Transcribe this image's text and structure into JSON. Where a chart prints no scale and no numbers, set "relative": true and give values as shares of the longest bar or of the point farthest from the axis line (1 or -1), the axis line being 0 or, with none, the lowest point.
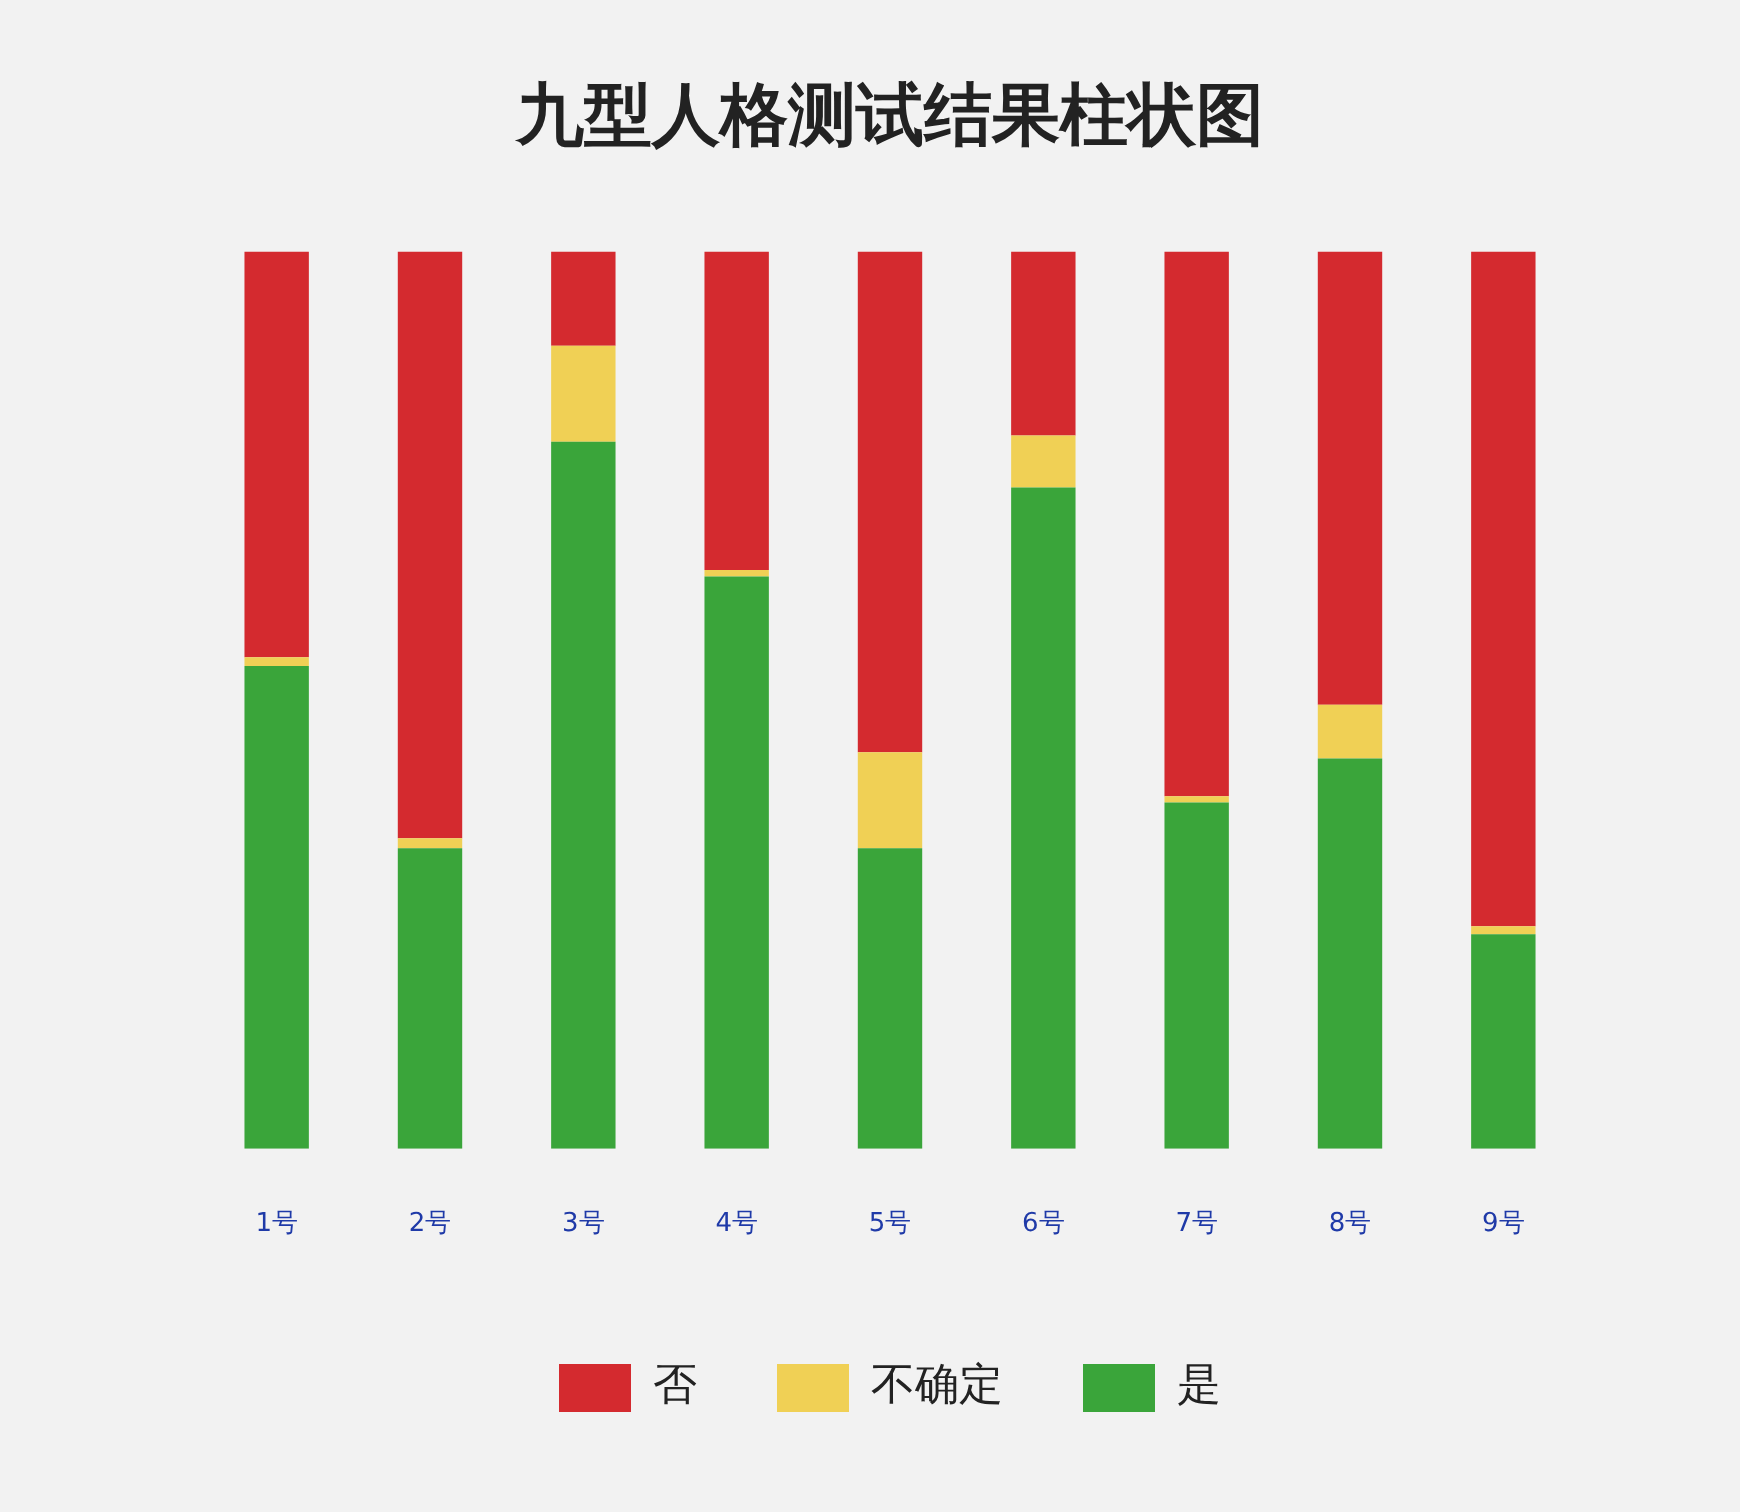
{
  "chart_data": {
    "type": "bar",
    "title": "九型人格测试结果柱状图",
    "categories": [
      "1号",
      "2号",
      "3号",
      "4号",
      "5号",
      "6号",
      "7号",
      "8号",
      "9号"
    ],
    "stacked": true,
    "relative": true,
    "legend": "bottom",
    "series": [
      {
        "name": "是",
        "color": "#3aa53a",
        "values": [
          0.538,
          0.335,
          0.788,
          0.638,
          0.335,
          0.737,
          0.386,
          0.435,
          0.239
        ]
      },
      {
        "name": "不确定",
        "color": "#f0d055",
        "values": [
          0.01,
          0.011,
          0.107,
          0.007,
          0.107,
          0.058,
          0.007,
          0.06,
          0.009
        ]
      },
      {
        "name": "否",
        "color": "#d42a2f",
        "values": [
          0.452,
          0.654,
          0.105,
          0.355,
          0.558,
          0.205,
          0.607,
          0.505,
          0.752
        ]
      }
    ]
  }
}
